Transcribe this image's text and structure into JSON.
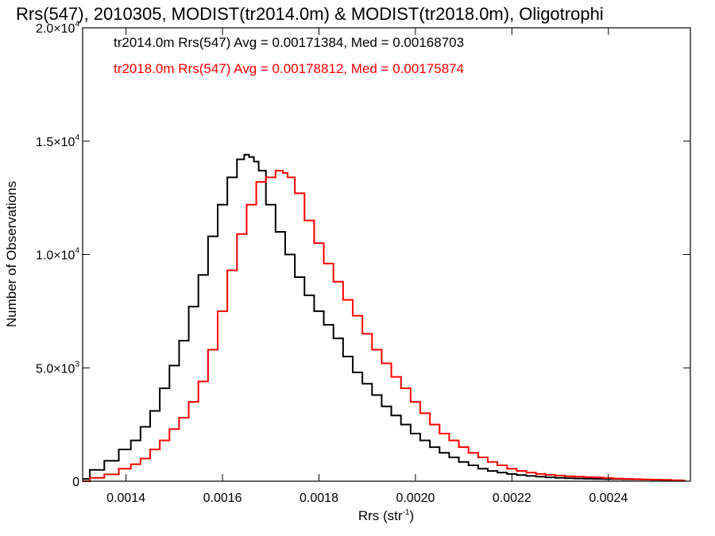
{
  "chart_data": {
    "type": "line",
    "title": "Rrs(547), 2010305, MODIST(tr2014.0m) & MODIST(tr2018.0m), Oligotrophi",
    "xlabel": "Rrs (str",
    "xlabel_sup": "-1",
    "xlabel_close": ")",
    "ylabel": "Number of Observations",
    "xlim": [
      0.00131,
      0.00257
    ],
    "ylim": [
      0,
      20000
    ],
    "x_ticks": [
      {
        "value": 0.0014,
        "label": "0.0014"
      },
      {
        "value": 0.0016,
        "label": "0.0016"
      },
      {
        "value": 0.0018,
        "label": "0.0018"
      },
      {
        "value": 0.002,
        "label": "0.0020"
      },
      {
        "value": 0.0022,
        "label": "0.0022"
      },
      {
        "value": 0.0024,
        "label": "0.0024"
      }
    ],
    "y_ticks": [
      {
        "value": 0,
        "mant": "0",
        "exp": ""
      },
      {
        "value": 5000,
        "mant": "5.0×10",
        "exp": "3"
      },
      {
        "value": 10000,
        "mant": "1.0×10",
        "exp": "4"
      },
      {
        "value": 15000,
        "mant": "1.5×10",
        "exp": "4"
      },
      {
        "value": 20000,
        "mant": "2.0×10",
        "exp": "4"
      }
    ],
    "annotations": [
      {
        "text": "tr2014.0m Rrs(547) Avg = 0.00171384, Med = 0.00168703",
        "color": "#000000"
      },
      {
        "text": "tr2018.0m Rrs(547) Avg = 0.00178812, Med = 0.00175874",
        "color": "#ff0000"
      }
    ],
    "grid": false,
    "series": [
      {
        "name": "tr2014.0m",
        "color": "#000000",
        "x": [
          0.00131,
          0.00134,
          0.00137,
          0.0014,
          0.00142,
          0.00144,
          0.00146,
          0.00148,
          0.0015,
          0.00152,
          0.00154,
          0.00156,
          0.00158,
          0.0016,
          0.00162,
          0.00164,
          0.00165,
          0.00166,
          0.00167,
          0.00168,
          0.0017,
          0.00172,
          0.00174,
          0.00176,
          0.00178,
          0.0018,
          0.00182,
          0.00184,
          0.00186,
          0.00188,
          0.0019,
          0.00192,
          0.00194,
          0.00196,
          0.00198,
          0.002,
          0.00202,
          0.00204,
          0.00206,
          0.00208,
          0.0021,
          0.00212,
          0.00214,
          0.00216,
          0.00218,
          0.0022,
          0.00222,
          0.00224,
          0.00226,
          0.00228,
          0.0023,
          0.00232,
          0.00234,
          0.00236,
          0.00238,
          0.0024,
          0.00242,
          0.00244,
          0.00246,
          0.00248,
          0.0025,
          0.00252,
          0.00254,
          0.00256
        ],
        "y": [
          100,
          500,
          900,
          1400,
          1800,
          2400,
          3100,
          4100,
          5100,
          6200,
          7700,
          9100,
          10800,
          12200,
          13400,
          14200,
          14400,
          14300,
          14100,
          13700,
          12200,
          11000,
          10000,
          9000,
          8200,
          7500,
          6900,
          6300,
          5500,
          4800,
          4300,
          3800,
          3300,
          2900,
          2500,
          2100,
          1800,
          1500,
          1250,
          1050,
          850,
          700,
          550,
          450,
          380,
          320,
          270,
          230,
          200,
          170,
          150,
          130,
          120,
          110,
          100,
          95,
          90,
          85,
          80,
          70,
          60,
          50,
          40,
          30
        ]
      },
      {
        "name": "tr2018.0m",
        "color": "#ff0000",
        "x": [
          0.00131,
          0.00134,
          0.00137,
          0.0014,
          0.00142,
          0.00144,
          0.00146,
          0.00148,
          0.0015,
          0.00152,
          0.00154,
          0.00156,
          0.00158,
          0.0016,
          0.00162,
          0.00164,
          0.00166,
          0.00168,
          0.0017,
          0.00172,
          0.00173,
          0.00174,
          0.00176,
          0.00178,
          0.0018,
          0.00182,
          0.00184,
          0.00186,
          0.00188,
          0.0019,
          0.00192,
          0.00194,
          0.00196,
          0.00198,
          0.002,
          0.00202,
          0.00204,
          0.00206,
          0.00208,
          0.0021,
          0.00212,
          0.00214,
          0.00216,
          0.00218,
          0.0022,
          0.00222,
          0.00224,
          0.00226,
          0.00228,
          0.0023,
          0.00232,
          0.00234,
          0.00236,
          0.00238,
          0.0024,
          0.00242,
          0.00244,
          0.00246,
          0.00248,
          0.0025,
          0.00252,
          0.00254,
          0.00256
        ],
        "y": [
          0,
          150,
          300,
          550,
          750,
          1000,
          1400,
          1800,
          2300,
          2800,
          3500,
          4400,
          5800,
          7500,
          9300,
          10900,
          12200,
          13200,
          13400,
          13700,
          13600,
          13400,
          12700,
          11500,
          10500,
          9600,
          8800,
          8000,
          7300,
          6500,
          5800,
          5200,
          4600,
          4100,
          3500,
          3000,
          2500,
          2100,
          1800,
          1500,
          1250,
          1050,
          850,
          700,
          550,
          450,
          380,
          320,
          280,
          250,
          220,
          200,
          180,
          160,
          140,
          120,
          100,
          90,
          80,
          70,
          60,
          40,
          20
        ]
      }
    ]
  }
}
